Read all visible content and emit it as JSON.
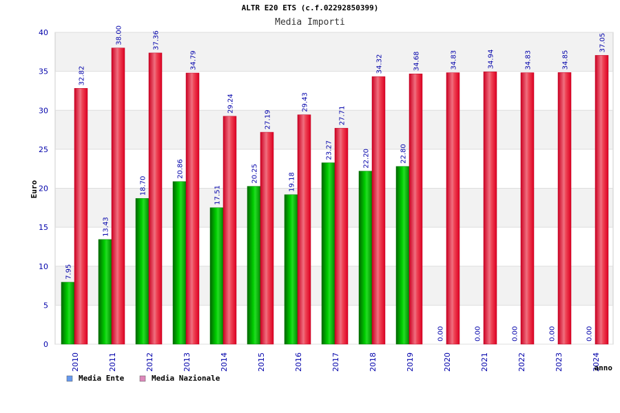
{
  "chart_data": {
    "type": "bar",
    "title": "ALTR E20 ETS (c.f.02292850399)",
    "subtitle": "Media Importi",
    "xlabel": "anno",
    "ylabel": "Euro",
    "ylim": [
      0,
      40
    ],
    "yticks": [
      0,
      5,
      10,
      15,
      20,
      25,
      30,
      35,
      40
    ],
    "grid": true,
    "legend_position": "bottom-left",
    "categories": [
      "2010",
      "2011",
      "2012",
      "2013",
      "2014",
      "2015",
      "2016",
      "2017",
      "2018",
      "2019",
      "2020",
      "2021",
      "2022",
      "2023",
      "2024"
    ],
    "series": [
      {
        "name": "Media Ente",
        "color": "#00aa00",
        "legend_color": "#6699ee",
        "values": [
          7.95,
          13.43,
          18.7,
          20.86,
          17.51,
          20.25,
          19.18,
          23.27,
          22.2,
          22.8,
          0.0,
          0.0,
          0.0,
          0.0,
          0.0
        ]
      },
      {
        "name": "Media Nazionale",
        "color": "#ee1133",
        "legend_color": "#dd88bb",
        "values": [
          32.82,
          38.0,
          37.36,
          34.79,
          29.24,
          27.19,
          29.43,
          27.71,
          34.32,
          34.68,
          34.83,
          34.94,
          34.83,
          34.85,
          37.05
        ]
      }
    ]
  }
}
